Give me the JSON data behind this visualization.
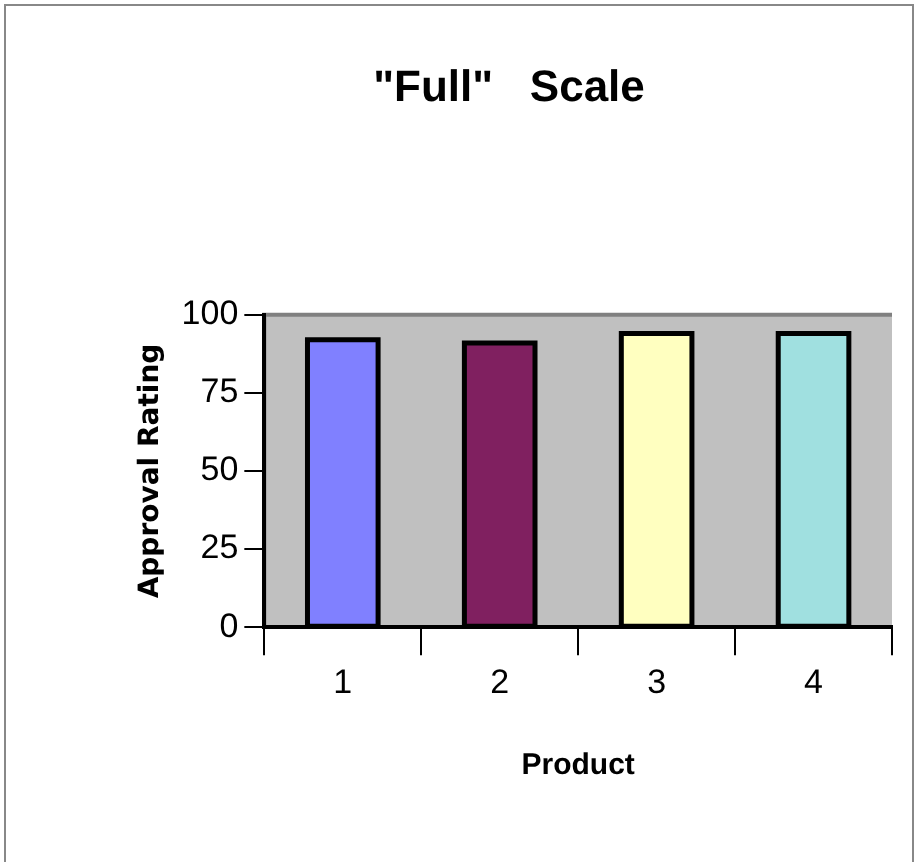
{
  "chart_data": {
    "type": "bar",
    "title": "\"Full\"   Scale",
    "xlabel": "Product",
    "ylabel": "Approval Rating",
    "categories": [
      "1",
      "2",
      "3",
      "4"
    ],
    "values": [
      92,
      91,
      94,
      94
    ],
    "colors": [
      "#8080ff",
      "#802060",
      "#ffffc0",
      "#a0e0e0"
    ],
    "ylim": [
      0,
      100
    ],
    "yticks": [
      0,
      25,
      50,
      75,
      100
    ],
    "grid": false,
    "legend": false
  }
}
